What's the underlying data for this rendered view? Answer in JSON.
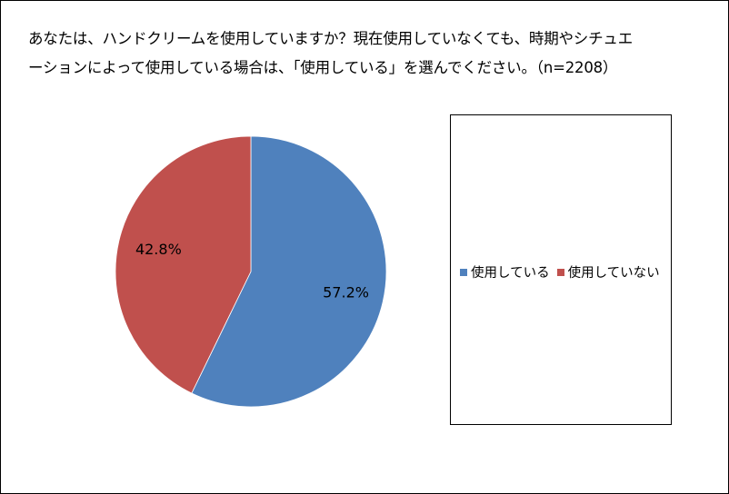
{
  "chart_data": {
    "type": "pie",
    "title": "あなたは、ハンドクリームを使用していますか？現在使用していなくても、時期やシチュエーションによって使用している場合は、「使用している」を選んでください。（n=2208）",
    "title_lines": [
      "あなたは、ハンドクリームを使用していますか？現在使用していなくても、時期やシチュエ",
      "ーションによって使用している場合は、「使用している」を選んでください。（n=2208）"
    ],
    "categories": [
      "使用している",
      "使用していない"
    ],
    "values": [
      57.2,
      42.8
    ],
    "labels": [
      "57.2%",
      "42.8%"
    ],
    "colors": [
      "#4F81BD",
      "#C0504D"
    ],
    "legend_position": "right"
  }
}
